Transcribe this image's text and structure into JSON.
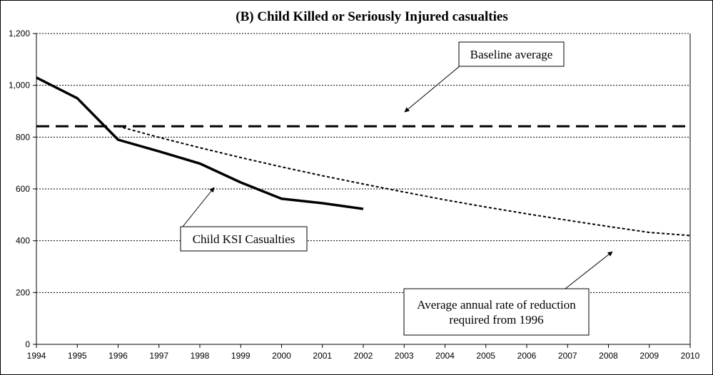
{
  "chart_data": {
    "type": "line",
    "title": "(B) Child Killed or Seriously Injured casualties",
    "xlabel": "",
    "ylabel": "",
    "xlim": [
      1994,
      2010
    ],
    "ylim": [
      0,
      1200
    ],
    "x_ticks": [
      "1994",
      "1995",
      "1996",
      "1997",
      "1998",
      "1999",
      "2000",
      "2001",
      "2002",
      "2003",
      "2004",
      "2005",
      "2006",
      "2007",
      "2008",
      "2009",
      "2010"
    ],
    "y_ticks": [
      "0",
      "200",
      "400",
      "600",
      "800",
      "1,000",
      "1,200"
    ],
    "grid": "horizontal dotted",
    "series": [
      {
        "name": "Child KSI Casualties",
        "style": "solid",
        "color": "#000000",
        "x": [
          1994,
          1995,
          1996,
          1997,
          1998,
          1999,
          2000,
          2001,
          2002
        ],
        "y": [
          1030,
          950,
          790,
          745,
          698,
          625,
          562,
          545,
          523
        ]
      },
      {
        "name": "Baseline average",
        "style": "dashed",
        "color": "#000000",
        "x": [
          1994,
          2010
        ],
        "y": [
          842,
          842
        ]
      },
      {
        "name": "Average annual rate of reduction required from 1996",
        "style": "dotted",
        "color": "#000000",
        "x": [
          1996,
          1997,
          1998,
          1999,
          2000,
          2001,
          2002,
          2003,
          2004,
          2005,
          2006,
          2007,
          2008,
          2009,
          2010
        ],
        "y": [
          842,
          799,
          759,
          721,
          685,
          651,
          619,
          588,
          558,
          530,
          504,
          479,
          455,
          432,
          420
        ]
      }
    ],
    "annotations": [
      {
        "text": [
          "Baseline average"
        ]
      },
      {
        "text": [
          "Child KSI Casualties"
        ]
      },
      {
        "text": [
          "Average annual rate of reduction",
          "required from 1996"
        ]
      }
    ]
  }
}
